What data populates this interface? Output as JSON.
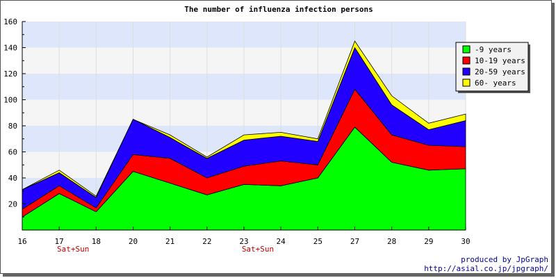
{
  "chart_data": {
    "type": "area",
    "stacked": true,
    "title": "The number of influenza infection persons",
    "xlabel": "",
    "ylabel": "",
    "categories": [
      "16",
      "17",
      "18",
      "20",
      "21",
      "22",
      "23",
      "24",
      "25",
      "27",
      "28",
      "29",
      "30"
    ],
    "ylim": [
      0,
      160
    ],
    "yticks": [
      20,
      40,
      60,
      80,
      100,
      120,
      140,
      160
    ],
    "grid": "horizontal bands",
    "legend_position": "right",
    "series": [
      {
        "name": "-9 years",
        "color": "#00ff00",
        "values": [
          10,
          28,
          14,
          45,
          36,
          27,
          35,
          34,
          40,
          79,
          52,
          46,
          47
        ]
      },
      {
        "name": "10-19 years",
        "color": "#ff0000",
        "values": [
          6,
          6,
          3,
          13,
          19,
          13,
          14,
          19,
          10,
          29,
          21,
          19,
          17
        ]
      },
      {
        "name": "20-59 years",
        "color": "#2200ff",
        "values": [
          15,
          10,
          8,
          27,
          16,
          15,
          20,
          19,
          18,
          32,
          23,
          12,
          20
        ]
      },
      {
        "name": "60- years",
        "color": "#ffff00",
        "values": [
          0,
          2,
          1,
          0,
          2,
          1,
          4,
          3,
          2,
          5,
          7,
          5,
          5
        ]
      }
    ],
    "annotations": [
      {
        "category": "17",
        "text": "Sat+Sun"
      },
      {
        "category": "23",
        "text": "Sat+Sun"
      }
    ]
  },
  "footer": {
    "line1": "produced by JpGraph",
    "line2": "http://asial.co.jp/jpgraph/"
  }
}
